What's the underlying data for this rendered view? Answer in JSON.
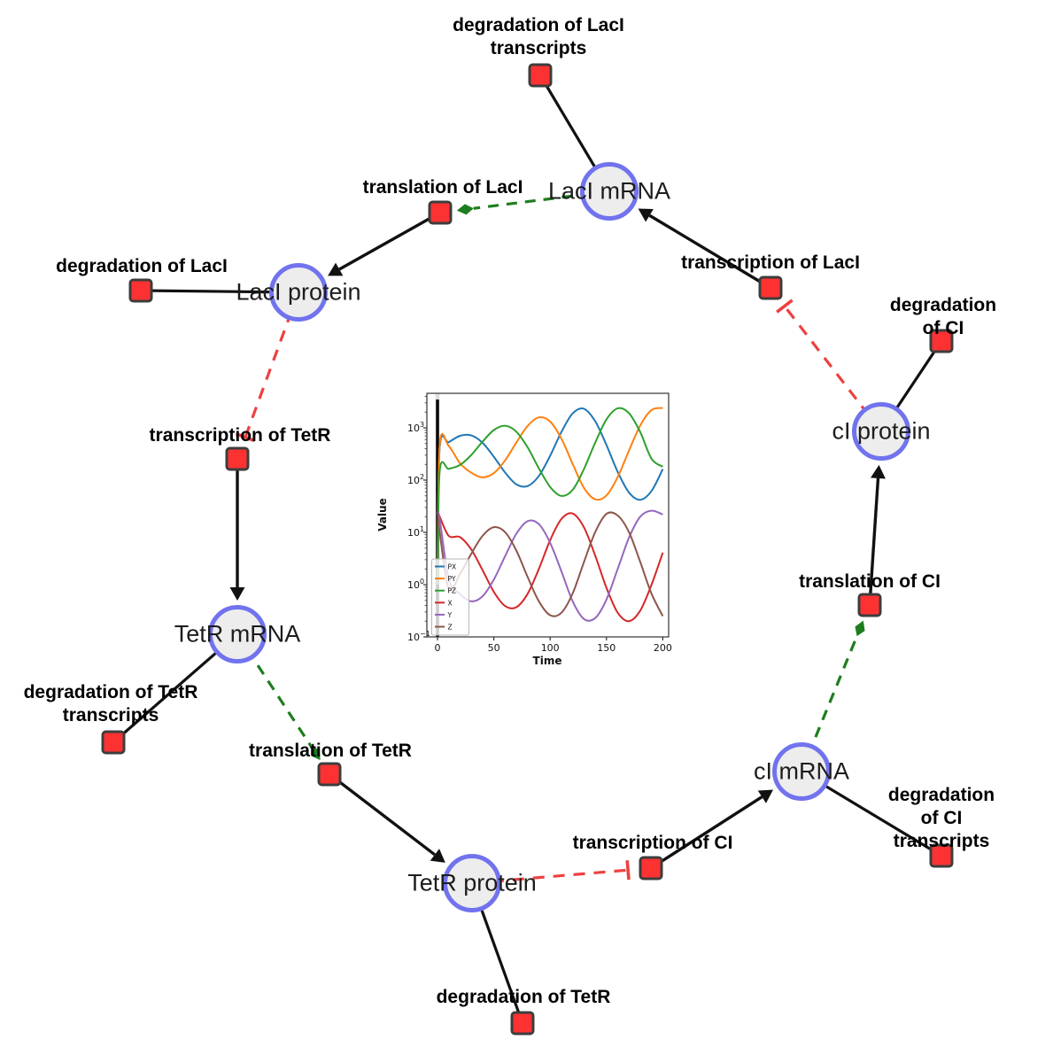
{
  "diagram": {
    "species": {
      "laci_mrna": {
        "label": "LacI mRNA"
      },
      "laci_protein": {
        "label": "LacI protein"
      },
      "ci_protein": {
        "label": "cI protein"
      },
      "tetr_mrna": {
        "label": "TetR mRNA"
      },
      "ci_mrna": {
        "label": "cI mRNA"
      },
      "tetr_protein": {
        "label": "TetR protein"
      }
    },
    "reactions": {
      "deg_laci_tx": {
        "label": "degradation of LacI\ntranscripts"
      },
      "tln_laci": {
        "label": "translation of LacI"
      },
      "txn_laci": {
        "label": "transcription of LacI"
      },
      "deg_laci": {
        "label": "degradation of LacI"
      },
      "deg_ci": {
        "label": "degradation of CI"
      },
      "txn_tetr": {
        "label": "transcription of TetR"
      },
      "tln_ci": {
        "label": "translation of CI"
      },
      "deg_tetr_tx": {
        "label": "degradation of TetR\ntranscripts"
      },
      "tln_tetr": {
        "label": "translation of TetR"
      },
      "deg_ci_tx": {
        "label": "degradation of CI\ntranscripts"
      },
      "txn_ci": {
        "label": "transcription of CI"
      },
      "deg_tetr": {
        "label": "degradation of TetR"
      }
    },
    "edges": [
      {
        "from": "laci_mrna",
        "to": "deg_laci_tx",
        "type": "consumption"
      },
      {
        "from": "laci_mrna",
        "to": "tln_laci",
        "type": "modifier"
      },
      {
        "from": "tln_laci",
        "to": "laci_protein",
        "type": "production"
      },
      {
        "from": "txn_laci",
        "to": "laci_mrna",
        "type": "production"
      },
      {
        "from": "laci_protein",
        "to": "deg_laci",
        "type": "consumption"
      },
      {
        "from": "laci_protein",
        "to": "txn_tetr",
        "type": "inhibition"
      },
      {
        "from": "ci_protein",
        "to": "txn_laci",
        "type": "inhibition"
      },
      {
        "from": "ci_protein",
        "to": "deg_ci",
        "type": "consumption"
      },
      {
        "from": "tln_ci",
        "to": "ci_protein",
        "type": "production"
      },
      {
        "from": "ci_mrna",
        "to": "tln_ci",
        "type": "modifier"
      },
      {
        "from": "txn_ci",
        "to": "ci_mrna",
        "type": "production"
      },
      {
        "from": "ci_mrna",
        "to": "deg_ci_tx",
        "type": "consumption"
      },
      {
        "from": "tetr_protein",
        "to": "txn_ci",
        "type": "inhibition"
      },
      {
        "from": "txn_tetr",
        "to": "tetr_mrna",
        "type": "production"
      },
      {
        "from": "tetr_mrna",
        "to": "deg_tetr_tx",
        "type": "consumption"
      },
      {
        "from": "tetr_mrna",
        "to": "tln_tetr",
        "type": "modifier"
      },
      {
        "from": "tln_tetr",
        "to": "tetr_protein",
        "type": "production"
      },
      {
        "from": "tetr_protein",
        "to": "deg_tetr",
        "type": "consumption"
      }
    ]
  },
  "colors": {
    "species_fill": "#ededed",
    "species_border": "#7173ee",
    "reaction_fill": "#fc3232",
    "reaction_border": "#3d3d3d",
    "edge_black": "#111111",
    "edge_green": "#1e7d1e",
    "edge_red": "#ee4040"
  },
  "chart_data": {
    "type": "line",
    "title": "",
    "xlabel": "Time",
    "ylabel": "Value",
    "yscale": "log",
    "xlim": [
      -10,
      206
    ],
    "ylim": [
      0.09,
      4600
    ],
    "xticks": [
      0,
      50,
      100,
      150,
      200
    ],
    "ytick_exponents": [
      -1,
      0,
      1,
      2,
      3
    ],
    "grid": false,
    "legend_position": "lower left",
    "event_line_x": 0,
    "x": [
      0,
      2,
      10,
      20,
      30,
      40,
      50,
      60,
      70,
      80,
      90,
      100,
      110,
      120,
      130,
      140,
      150,
      160,
      170,
      180,
      190,
      200
    ],
    "series": [
      {
        "name": "PX",
        "color": "#1f77b4",
        "values": [
          1,
          420,
          532,
          704,
          716,
          518,
          280,
          140,
          83,
          77,
          120,
          293,
          832,
          1892,
          2322,
          1340,
          469,
          143,
          58,
          42,
          62,
          163
        ]
      },
      {
        "name": "PY",
        "color": "#ff7f0e",
        "values": [
          1,
          480,
          450,
          211,
          138,
          113,
          136,
          238,
          524,
          1089,
          1585,
          1317,
          621,
          204,
          71,
          43,
          51,
          115,
          368,
          1117,
          2193,
          2400
        ]
      },
      {
        "name": "PZ",
        "color": "#2ca02c",
        "values": [
          1,
          150,
          164,
          195,
          303,
          545,
          906,
          1099,
          845,
          423,
          168,
          74,
          50,
          65,
          163,
          522,
          1452,
          2365,
          1910,
          828,
          256,
          180
        ]
      },
      {
        "name": "X",
        "color": "#d62728",
        "values": [
          25,
          20,
          8.6,
          8.1,
          4.7,
          1.9,
          0.73,
          0.39,
          0.37,
          0.67,
          2.0,
          7.1,
          18,
          23,
          12.5,
          3.6,
          0.87,
          0.29,
          0.2,
          0.32,
          1.0,
          4.1
        ]
      },
      {
        "name": "Y",
        "color": "#9467bd",
        "values": [
          25,
          18,
          1.3,
          0.66,
          0.48,
          0.6,
          1.25,
          3.5,
          9.4,
          16.4,
          14.4,
          6.3,
          1.8,
          0.48,
          0.22,
          0.23,
          0.52,
          2.0,
          7.9,
          20,
          26,
          22
        ]
      },
      {
        "name": "Z",
        "color": "#8c564b",
        "values": [
          25,
          10,
          0.83,
          1.6,
          3.9,
          8.6,
          12.6,
          10.1,
          4.5,
          1.4,
          0.48,
          0.26,
          0.29,
          0.68,
          2.7,
          10.1,
          22.6,
          21,
          10.1,
          2.7,
          0.67,
          0.25
        ]
      }
    ]
  }
}
